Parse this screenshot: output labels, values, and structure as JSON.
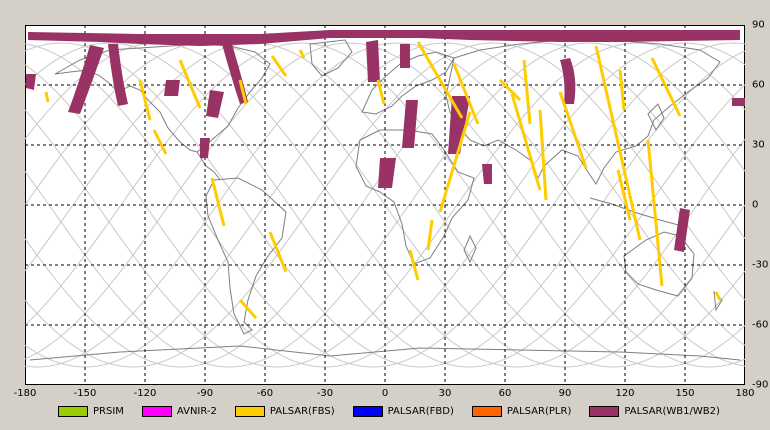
{
  "map": {
    "x_ticks": [
      "-180",
      "-150",
      "-120",
      "-90",
      "-60",
      "-30",
      "0",
      "30",
      "60",
      "90",
      "120",
      "150",
      "180"
    ],
    "y_ticks": [
      "90",
      "60",
      "30",
      "0",
      "-30",
      "-60",
      "-90"
    ],
    "colors": {
      "land": "#7f7f7f",
      "orbit": "#c8c8c8",
      "grid": "#000000",
      "fbs": "#ffcc00",
      "wb": "#993366"
    }
  },
  "legend": [
    {
      "label": "PRSIM",
      "color": "#99cc00"
    },
    {
      "label": "AVNIR-2",
      "color": "#ff00ff"
    },
    {
      "label": "PALSAR(FBS)",
      "color": "#ffcc00"
    },
    {
      "label": "PALSAR(FBD)",
      "color": "#0000ff"
    },
    {
      "label": "PALSAR(PLR)",
      "color": "#ff6600"
    },
    {
      "label": "PALSAR(WB1/WB2)",
      "color": "#993366"
    }
  ]
}
